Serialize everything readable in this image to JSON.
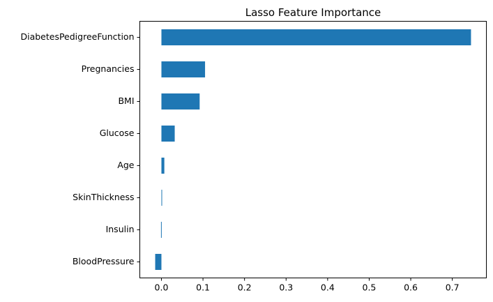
{
  "chart_data": {
    "type": "bar",
    "orientation": "horizontal",
    "title": "Lasso Feature Importance",
    "xlabel": "",
    "ylabel": "",
    "categories": [
      "DiabetesPedigreeFunction",
      "Pregnancies",
      "BMI",
      "Glucose",
      "Age",
      "SkinThickness",
      "Insulin",
      "BloodPressure"
    ],
    "values": [
      0.745,
      0.105,
      0.092,
      0.032,
      0.007,
      0.001,
      -0.001,
      -0.015
    ],
    "xlim": [
      -0.052,
      0.782
    ],
    "xticks": [
      0.0,
      0.1,
      0.2,
      0.3,
      0.4,
      0.5,
      0.6,
      0.7
    ],
    "xtick_labels": [
      "0.0",
      "0.1",
      "0.2",
      "0.3",
      "0.4",
      "0.5",
      "0.6",
      "0.7"
    ],
    "grid": false,
    "bar_color": "#1f77b4"
  }
}
